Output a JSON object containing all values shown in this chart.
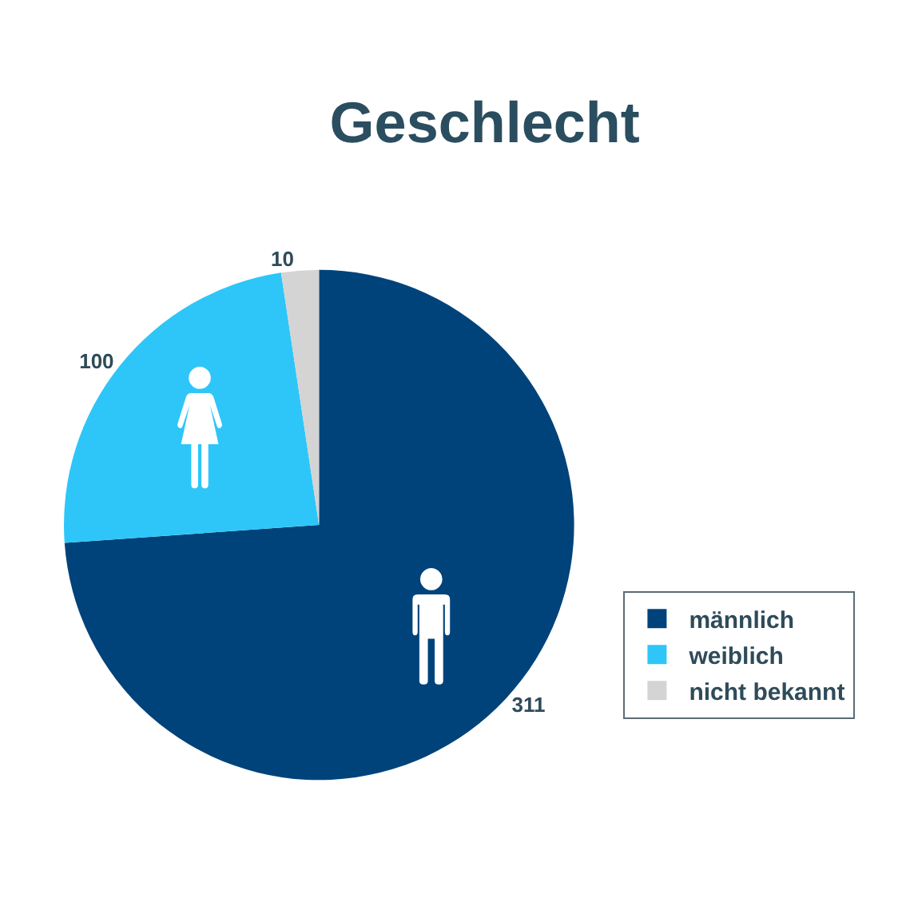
{
  "chart_data": {
    "type": "pie",
    "title": "Geschlecht",
    "categories": [
      "männlich",
      "weiblich",
      "nicht bekannt"
    ],
    "values": [
      311,
      100,
      10
    ],
    "colors": [
      "#00437a",
      "#2ec6f8",
      "#d4d4d4"
    ],
    "data_labels": true,
    "legend": "right"
  }
}
